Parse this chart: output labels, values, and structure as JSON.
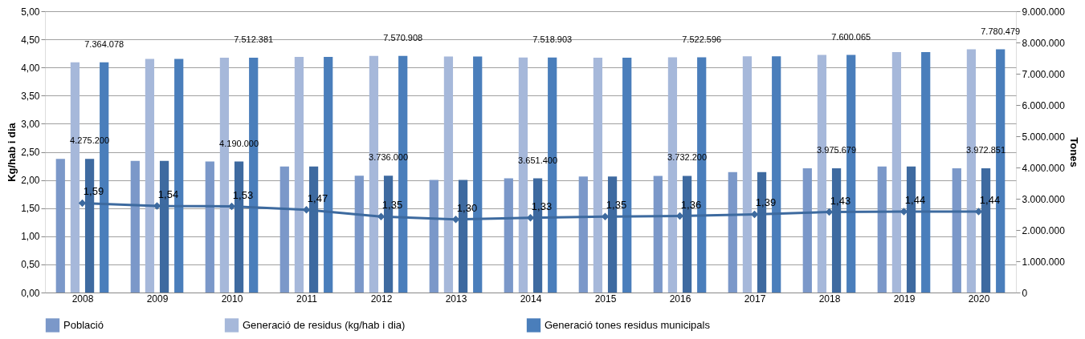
{
  "chart_data": {
    "type": "bar",
    "ylabel": "Kg/hab i dia",
    "y2label": "Tones",
    "categories": [
      "2008",
      "2009",
      "2010",
      "2011",
      "2012",
      "2013",
      "2014",
      "2015",
      "2016",
      "2017",
      "2018",
      "2019",
      "2020"
    ],
    "series": [
      {
        "name": "Població",
        "color": "#7b98c9",
        "axis": "y2",
        "values": [
          4275200,
          4212000,
          4190000,
          4032000,
          3736000,
          3600000,
          3651400,
          3710000,
          3732200,
          3850000,
          3975679,
          4030000,
          3972851
        ]
      },
      {
        "name": "Generació de residus (kg/hab i dia)",
        "color": "#a6b8da",
        "axis": "y2",
        "values": [
          7364078,
          7475000,
          7512381,
          7540000,
          7570908,
          7550000,
          7518903,
          7510000,
          7522596,
          7555000,
          7600065,
          7690000,
          7780479
        ]
      },
      {
        "color": "#3e6aa0",
        "axis": "y2",
        "values": [
          4275200,
          4212000,
          4190000,
          4032000,
          3736000,
          3600000,
          3651400,
          3710000,
          3732200,
          3850000,
          3975679,
          4030000,
          3972851
        ],
        "value_labels": [
          "4.275.200",
          null,
          "4.190.000",
          null,
          "3.736.000",
          null,
          "3.651.400",
          null,
          "3.732.200",
          null,
          "3.975.679",
          null,
          "3.972.851"
        ]
      },
      {
        "name": "Generació  tones residus municipals",
        "color": "#4a7ebb",
        "axis": "y2",
        "values": [
          7364078,
          7475000,
          7512381,
          7540000,
          7570908,
          7550000,
          7518903,
          7510000,
          7522596,
          7555000,
          7600065,
          7690000,
          7780479
        ],
        "value_labels": [
          "7.364.078",
          null,
          "7.512.381",
          null,
          "7.570.908",
          null,
          "7.518.903",
          null,
          "7.522.596",
          null,
          "7.600.065",
          null,
          "7.780.479"
        ]
      },
      {
        "type": "line",
        "color": "#3d6a9f",
        "axis": "y",
        "marker": "diamond",
        "values": [
          1.59,
          1.54,
          1.53,
          1.47,
          1.35,
          1.3,
          1.33,
          1.35,
          1.36,
          1.39,
          1.43,
          1.44,
          1.44
        ],
        "value_labels": [
          "1,59",
          "1,54",
          "1,53",
          "1,47",
          "1,35",
          "1,30",
          "1,33",
          "1,35",
          "1,36",
          "1,39",
          "1,43",
          "1,44",
          "1,44"
        ]
      }
    ],
    "ylim": [
      0,
      5
    ],
    "yticks": [
      {
        "value": 0,
        "label": "0,00"
      },
      {
        "value": 0.5,
        "label": "0,50"
      },
      {
        "value": 1,
        "label": "1,00"
      },
      {
        "value": 1.5,
        "label": "1,50"
      },
      {
        "value": 2,
        "label": "2,00"
      },
      {
        "value": 2.5,
        "label": "2,50"
      },
      {
        "value": 3,
        "label": "3,00"
      },
      {
        "value": 3.5,
        "label": "3,50"
      },
      {
        "value": 4,
        "label": "4,00"
      },
      {
        "value": 4.5,
        "label": "4,50"
      },
      {
        "value": 5,
        "label": "5,00"
      }
    ],
    "y2lim": [
      0,
      9000000
    ],
    "y2ticks": [
      0,
      {
        "value": 1000000,
        "label": "1.000.000"
      },
      {
        "value": 2000000,
        "label": "2.000.000"
      },
      {
        "value": 3000000,
        "label": "3.000.000"
      },
      {
        "value": 4000000,
        "label": "4.000.000"
      },
      {
        "value": 5000000,
        "label": "5.000.000"
      },
      {
        "value": 6000000,
        "label": "6.000.000"
      },
      {
        "value": 7000000,
        "label": "7.000.000"
      },
      {
        "value": 8000000,
        "label": "8.000.000"
      },
      {
        "value": 9000000,
        "label": "9.000.000"
      }
    ],
    "grid": "y",
    "legend": "bottom"
  }
}
